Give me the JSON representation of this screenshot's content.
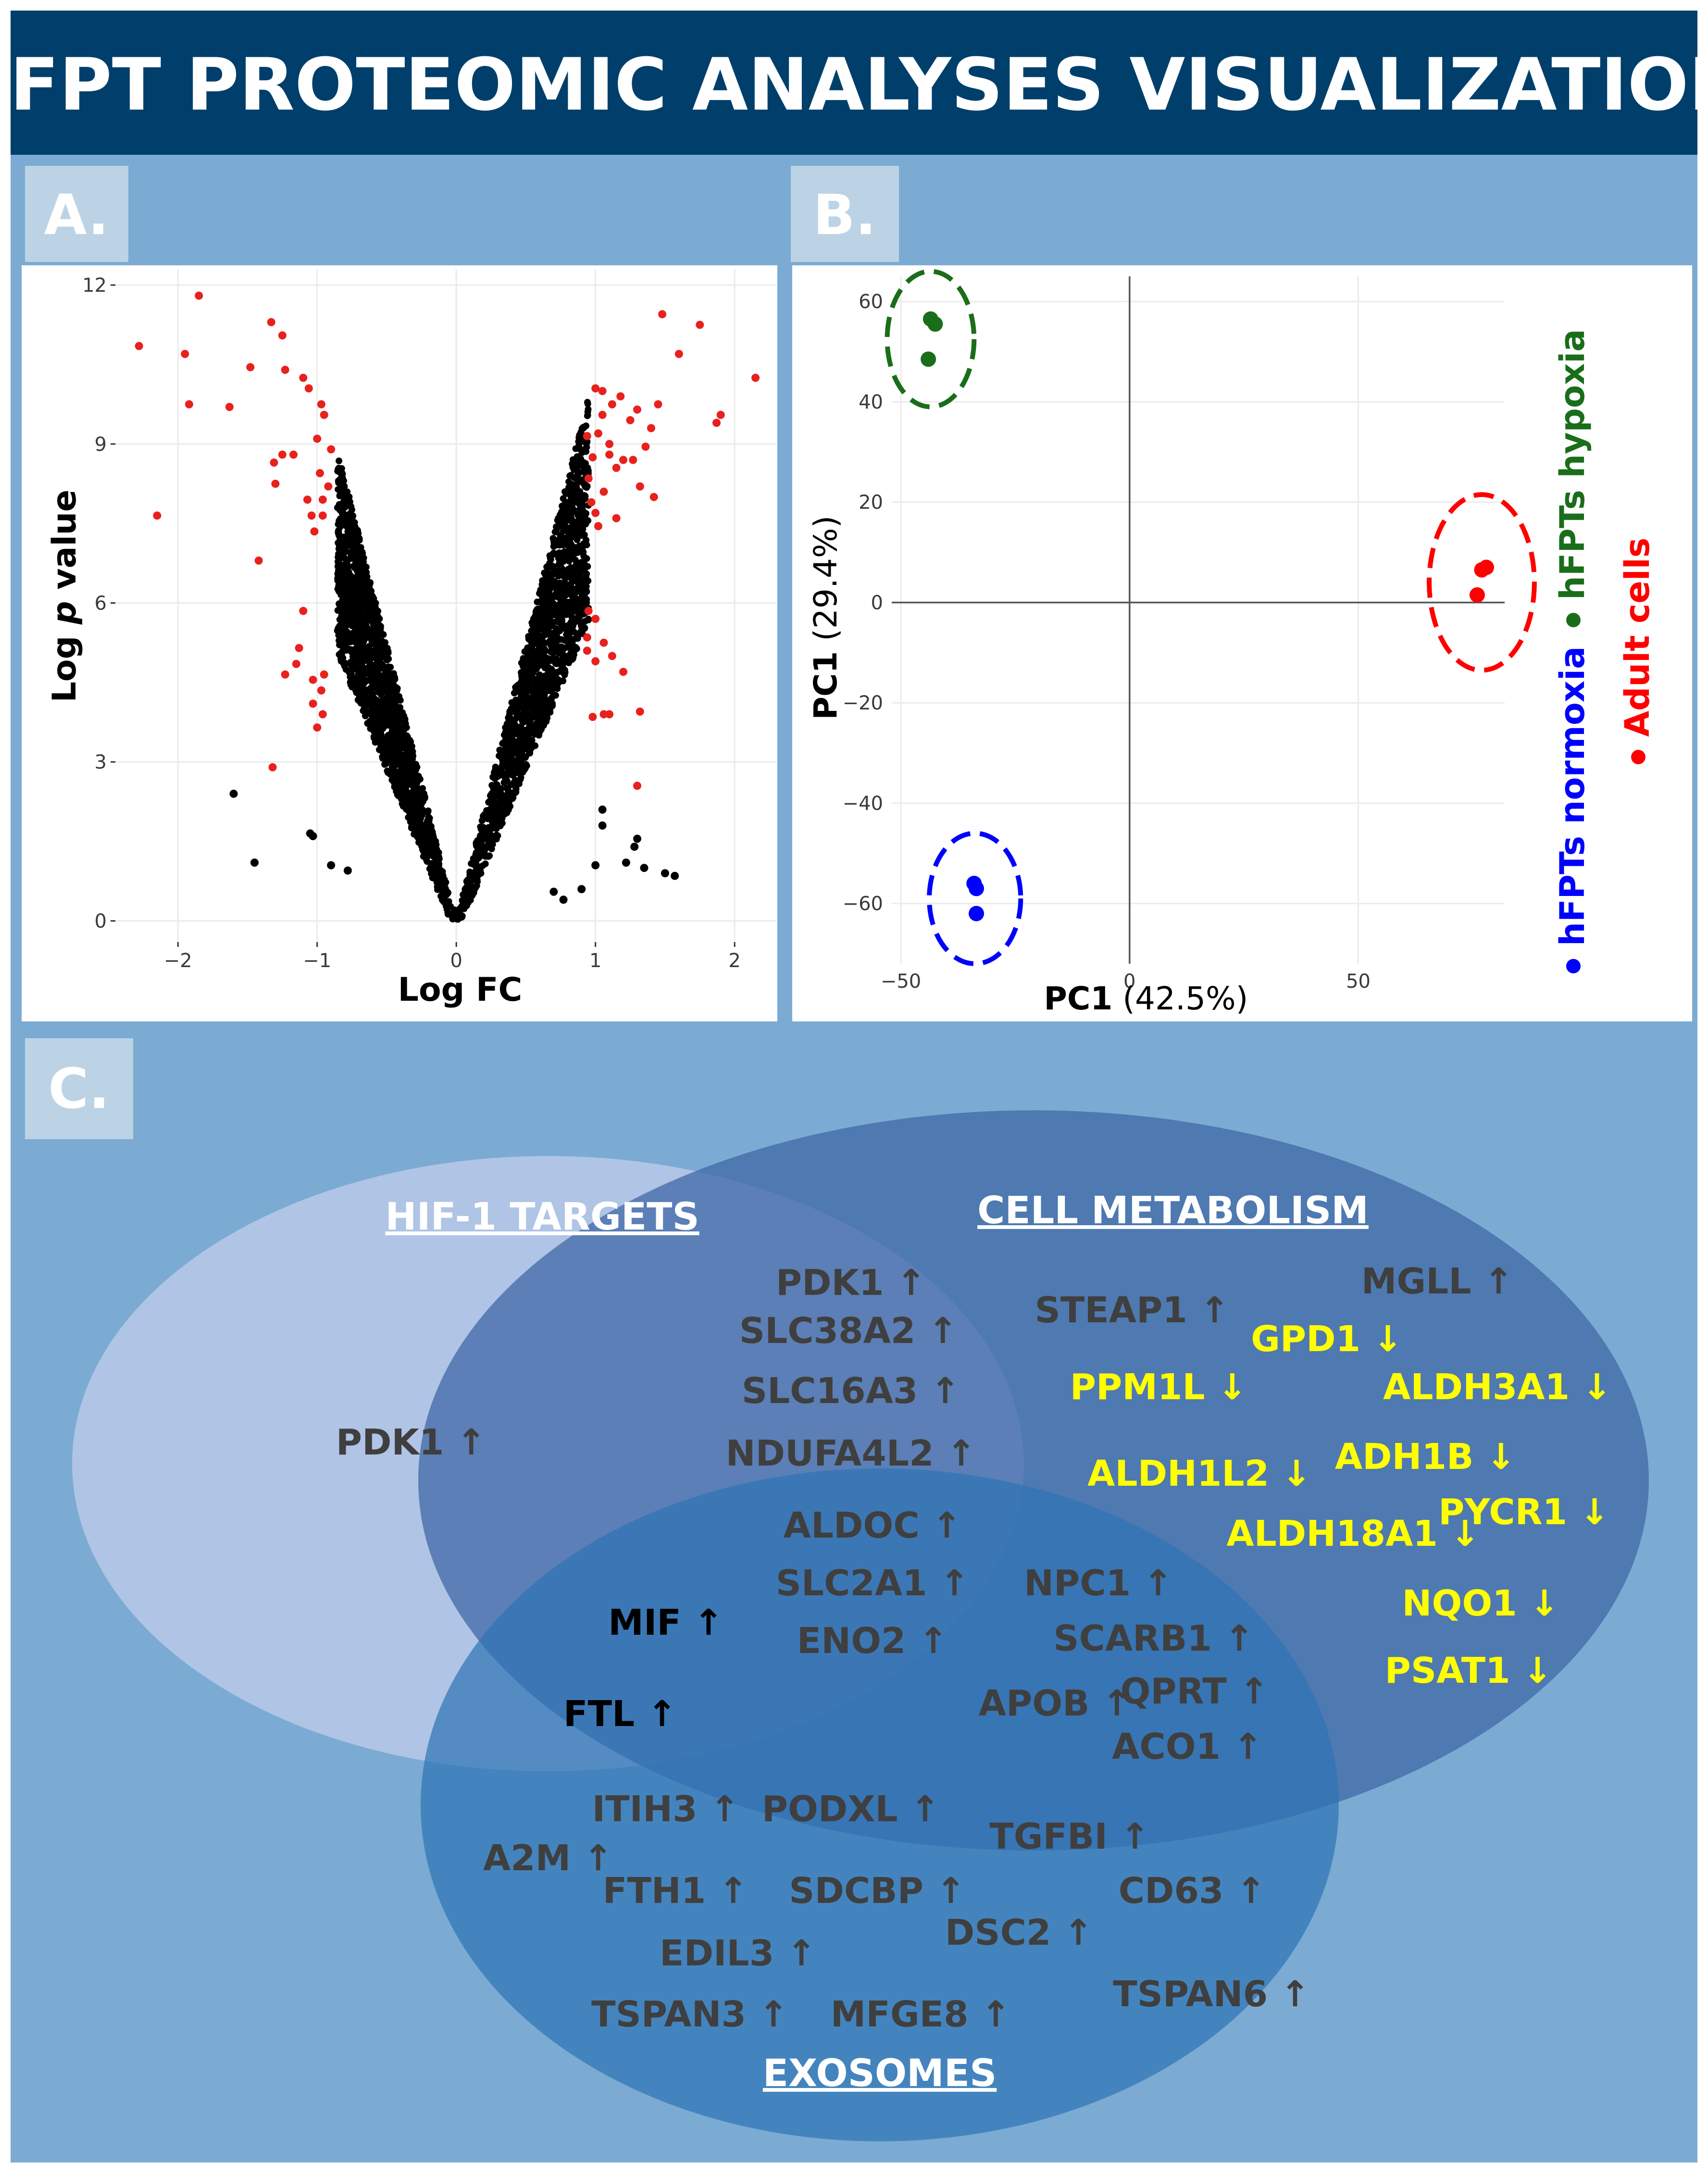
{
  "title": "hFPT PROTEOMIC ANALYSES VISUALIZATION",
  "colors": {
    "title_band": "#003f6b",
    "panel_bg": "#7babd2",
    "letter_tab": "#bcd3e6",
    "gene_gray": "#3f3f3f",
    "gene_yellow": "#ffff00",
    "hif_ellipse": "#b3c5e6",
    "metabolism_ellipse": "#3f68a6",
    "exosomes_ellipse": "#2e73b5",
    "up_point": "#e8211d",
    "nonsig_point": "#000000"
  },
  "panel_a": {
    "letter": "A.",
    "chart_data": {
      "type": "scatter",
      "subtype": "volcano",
      "xlabel": "Log FC",
      "ylabel_prefix": "Log ",
      "ylabel_italic": "p",
      "ylabel_suffix": " value",
      "xlim": [
        -2.45,
        2.3
      ],
      "ylim": [
        -0.4,
        12.3
      ],
      "xticks": [
        -2,
        -1,
        0,
        1,
        2
      ],
      "yticks": [
        0,
        3,
        6,
        9,
        12
      ],
      "xtick_labels": [
        "−2",
        "−1",
        "0",
        "1",
        "2"
      ],
      "ytick_labels": [
        "0",
        "3",
        "6",
        "9",
        "12"
      ],
      "grid": true,
      "series": [
        {
          "color": "#e8211d",
          "points": [
            [
              -2.28,
              10.85
            ],
            [
              -1.95,
              10.7
            ],
            [
              -1.92,
              9.75
            ],
            [
              -1.85,
              11.8
            ],
            [
              -1.63,
              9.7
            ],
            [
              -1.48,
              10.45
            ],
            [
              -1.33,
              11.3
            ],
            [
              -1.25,
              11.05
            ],
            [
              -1.23,
              10.4
            ],
            [
              -1.1,
              10.25
            ],
            [
              -1.06,
              10.05
            ],
            [
              -0.97,
              9.75
            ],
            [
              -0.95,
              9.55
            ],
            [
              -1.0,
              9.1
            ],
            [
              -0.9,
              8.9
            ],
            [
              -1.17,
              8.8
            ],
            [
              -1.25,
              8.8
            ],
            [
              -1.31,
              8.65
            ],
            [
              -0.98,
              8.45
            ],
            [
              -1.3,
              8.25
            ],
            [
              -0.92,
              8.2
            ],
            [
              -1.07,
              7.95
            ],
            [
              -0.96,
              7.95
            ],
            [
              -1.04,
              7.65
            ],
            [
              -0.96,
              7.65
            ],
            [
              -2.15,
              7.65
            ],
            [
              -1.02,
              7.35
            ],
            [
              -1.42,
              6.8
            ],
            [
              -1.1,
              5.85
            ],
            [
              -1.13,
              5.15
            ],
            [
              -1.15,
              4.85
            ],
            [
              -1.23,
              4.65
            ],
            [
              -0.95,
              4.65
            ],
            [
              -1.03,
              4.55
            ],
            [
              -0.97,
              4.35
            ],
            [
              -1.03,
              4.1
            ],
            [
              -0.96,
              3.9
            ],
            [
              -1.0,
              3.65
            ],
            [
              -1.32,
              2.9
            ],
            [
              1.48,
              11.45
            ],
            [
              1.75,
              11.25
            ],
            [
              1.6,
              10.7
            ],
            [
              2.15,
              10.25
            ],
            [
              1.0,
              10.05
            ],
            [
              1.05,
              10.0
            ],
            [
              1.18,
              9.9
            ],
            [
              1.12,
              9.75
            ],
            [
              1.45,
              9.75
            ],
            [
              1.3,
              9.65
            ],
            [
              1.05,
              9.55
            ],
            [
              1.25,
              9.45
            ],
            [
              1.9,
              9.55
            ],
            [
              1.87,
              9.4
            ],
            [
              1.4,
              9.3
            ],
            [
              1.02,
              9.2
            ],
            [
              0.94,
              9.15
            ],
            [
              1.1,
              9.0
            ],
            [
              1.36,
              8.95
            ],
            [
              1.1,
              8.8
            ],
            [
              0.98,
              8.75
            ],
            [
              1.2,
              8.7
            ],
            [
              1.27,
              8.7
            ],
            [
              1.15,
              8.55
            ],
            [
              0.95,
              8.35
            ],
            [
              1.32,
              8.2
            ],
            [
              1.42,
              8.0
            ],
            [
              1.06,
              8.1
            ],
            [
              0.97,
              7.9
            ],
            [
              1.0,
              7.7
            ],
            [
              1.15,
              7.6
            ],
            [
              1.02,
              7.45
            ],
            [
              0.95,
              5.85
            ],
            [
              1.0,
              5.7
            ],
            [
              0.94,
              5.35
            ],
            [
              1.06,
              5.25
            ],
            [
              0.94,
              5.1
            ],
            [
              1.0,
              4.9
            ],
            [
              1.12,
              5.0
            ],
            [
              1.2,
              4.7
            ],
            [
              1.32,
              3.95
            ],
            [
              1.1,
              3.9
            ],
            [
              1.06,
              3.9
            ],
            [
              0.98,
              3.85
            ],
            [
              1.3,
              2.55
            ]
          ]
        },
        {
          "color": "#000000",
          "points": [
            [
              -1.6,
              2.4
            ],
            [
              -1.45,
              1.1
            ],
            [
              -1.05,
              1.65
            ],
            [
              -1.03,
              1.6
            ],
            [
              -0.9,
              1.05
            ],
            [
              -0.78,
              0.95
            ],
            [
              1.05,
              2.1
            ],
            [
              1.05,
              1.8
            ],
            [
              1.3,
              1.55
            ],
            [
              1.22,
              1.1
            ],
            [
              1.0,
              1.05
            ],
            [
              1.28,
              1.4
            ],
            [
              1.35,
              1.0
            ],
            [
              1.5,
              0.9
            ],
            [
              1.57,
              0.85
            ],
            [
              0.77,
              0.4
            ],
            [
              0.9,
              0.6
            ],
            [
              0.7,
              0.55
            ]
          ]
        }
      ]
    }
  },
  "panel_b": {
    "letter": "B.",
    "chart_data": {
      "type": "scatter",
      "subtype": "pca",
      "xlabel_main": "PC1",
      "xlabel_pct": " (42.5%)",
      "ylabel_main": "PC1",
      "ylabel_pct": " (29.4%)",
      "xlim": [
        -52,
        82
      ],
      "ylim": [
        -72,
        65
      ],
      "xticks": [
        -50,
        0,
        50
      ],
      "yticks": [
        -60,
        -40,
        -20,
        0,
        20,
        40,
        60
      ],
      "xtick_labels": [
        "−50",
        "0",
        "50"
      ],
      "ytick_labels": [
        "−60",
        "−40",
        "−20",
        "0",
        "20",
        "40",
        "60"
      ],
      "grid": true,
      "groups": [
        {
          "name": "hFPTs hypoxia",
          "color": "#1a6e1a",
          "points": [
            [
              -43.5,
              56.5
            ],
            [
              -42.5,
              55.5
            ],
            [
              -44,
              48.5
            ]
          ],
          "ellipse": {
            "cx": -43.5,
            "cy": 52.5,
            "rx": 9.5,
            "ry": 13.5
          }
        },
        {
          "name": "Adult cells",
          "color": "#ff0000",
          "points": [
            [
              77,
              6.5
            ],
            [
              78,
              7
            ],
            [
              76,
              1.5
            ]
          ],
          "ellipse": {
            "cx": 77,
            "cy": 4,
            "rx": 11.5,
            "ry": 17.5
          }
        },
        {
          "name": "hFPTs normoxia",
          "color": "#0000ff",
          "points": [
            [
              -34,
              -56
            ],
            [
              -33.5,
              -57
            ],
            [
              -33.5,
              -62
            ]
          ],
          "ellipse": {
            "cx": -33.8,
            "cy": -59,
            "rx": 10,
            "ry": 13
          }
        }
      ],
      "legend_placement": "right-vertical",
      "legend": [
        {
          "label": "hFPTs normoxia",
          "color": "#0000ff"
        },
        {
          "label": "hFPTs hypoxia",
          "color": "#1a6e1a"
        },
        {
          "label": "Adult cells",
          "color": "#ff0000"
        }
      ]
    }
  },
  "panel_c": {
    "letter": "C.",
    "chart_data": {
      "type": "diagram",
      "subtype": "venn",
      "sets": [
        {
          "key": "hif",
          "label": "HIF-1 TARGETS"
        },
        {
          "key": "metabolism",
          "label": "CELL METABOLISM"
        },
        {
          "key": "exosomes",
          "label": "EXOSOMES"
        }
      ],
      "genes": [
        {
          "name": "PDK1 ↑",
          "region": "hif",
          "color": "gray"
        },
        {
          "name": "PDK1 ↑",
          "region": "hif+metabolism",
          "color": "gray"
        },
        {
          "name": "SLC38A2 ↑",
          "region": "hif+metabolism",
          "color": "gray"
        },
        {
          "name": "SLC16A3 ↑",
          "region": "hif+metabolism",
          "color": "gray"
        },
        {
          "name": "NDUFA4L2 ↑",
          "region": "hif+metabolism",
          "color": "gray"
        },
        {
          "name": "ALDOC ↑",
          "region": "hif+metabolism+exosomes",
          "color": "gray"
        },
        {
          "name": "SLC2A1 ↑",
          "region": "hif+metabolism+exosomes",
          "color": "gray"
        },
        {
          "name": "ENO2 ↑",
          "region": "hif+metabolism+exosomes",
          "color": "gray"
        },
        {
          "name": "MIF ↑",
          "region": "hif+exosomes",
          "color": "black"
        },
        {
          "name": "FTL ↑",
          "region": "hif+exosomes",
          "color": "black"
        },
        {
          "name": "STEAP1 ↑",
          "region": "metabolism",
          "color": "gray"
        },
        {
          "name": "MGLL ↑",
          "region": "metabolism",
          "color": "gray"
        },
        {
          "name": "GPD1 ↓",
          "region": "metabolism",
          "color": "yellow"
        },
        {
          "name": "PPM1L ↓",
          "region": "metabolism",
          "color": "yellow"
        },
        {
          "name": "ALDH3A1 ↓",
          "region": "metabolism",
          "color": "yellow"
        },
        {
          "name": "ADH1B ↓",
          "region": "metabolism",
          "color": "yellow"
        },
        {
          "name": "ALDH1L2 ↓",
          "region": "metabolism",
          "color": "yellow"
        },
        {
          "name": "ALDH18A1 ↓",
          "region": "metabolism",
          "color": "yellow"
        },
        {
          "name": "PYCR1 ↓",
          "region": "metabolism",
          "color": "yellow"
        },
        {
          "name": "NQO1 ↓",
          "region": "metabolism",
          "color": "yellow"
        },
        {
          "name": "PSAT1 ↓",
          "region": "metabolism",
          "color": "yellow"
        },
        {
          "name": "NPC1 ↑",
          "region": "metabolism+exosomes",
          "color": "gray"
        },
        {
          "name": "SCARB1 ↑",
          "region": "metabolism+exosomes",
          "color": "gray"
        },
        {
          "name": "QPRT ↑",
          "region": "metabolism+exosomes",
          "color": "gray"
        },
        {
          "name": "APOB ↑",
          "region": "metabolism+exosomes",
          "color": "gray"
        },
        {
          "name": "ACO1 ↑",
          "region": "metabolism+exosomes",
          "color": "gray"
        },
        {
          "name": "ITIH3 ↑",
          "region": "exosomes",
          "color": "gray"
        },
        {
          "name": "PODXL ↑",
          "region": "exosomes",
          "color": "gray"
        },
        {
          "name": "TGFBI ↑",
          "region": "exosomes",
          "color": "gray"
        },
        {
          "name": "A2M ↑",
          "region": "exosomes",
          "color": "gray"
        },
        {
          "name": "FTH1 ↑",
          "region": "exosomes",
          "color": "gray"
        },
        {
          "name": "SDCBP ↑",
          "region": "exosomes",
          "color": "gray"
        },
        {
          "name": "CD63 ↑",
          "region": "exosomes",
          "color": "gray"
        },
        {
          "name": "DSC2 ↑",
          "region": "exosomes",
          "color": "gray"
        },
        {
          "name": "EDIL3 ↑",
          "region": "exosomes",
          "color": "gray"
        },
        {
          "name": "TSPAN6 ↑",
          "region": "exosomes",
          "color": "gray"
        },
        {
          "name": "TSPAN3 ↑",
          "region": "exosomes",
          "color": "gray"
        },
        {
          "name": "MFGE8 ↑",
          "region": "exosomes",
          "color": "gray"
        }
      ]
    }
  }
}
